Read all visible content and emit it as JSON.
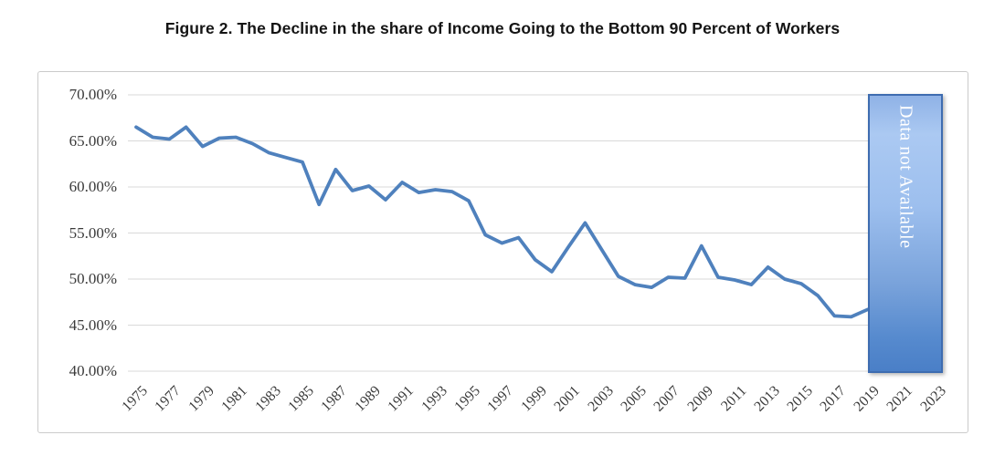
{
  "figure": {
    "title": "Figure 2. The Decline in the share of Income Going to the Bottom 90 Percent of Workers"
  },
  "annotation": {
    "label": "Data not Available"
  },
  "colors": {
    "line": "#4f81bd",
    "gridline": "#d9d9d9",
    "frame_border": "#cbcbcb",
    "tick_text": "#3a3a3a",
    "na_box_border": "#3e6cb0",
    "na_box_fill_light": "#abc9f2",
    "na_box_fill_dark": "#4a7fc7",
    "na_text": "#ffffff"
  },
  "chart_data": {
    "type": "line",
    "title": "Figure 2. The Decline in the share of Income Going to the Bottom 90 Percent of Workers",
    "x": [
      1975,
      1976,
      1977,
      1978,
      1979,
      1980,
      1981,
      1982,
      1983,
      1984,
      1985,
      1986,
      1987,
      1988,
      1989,
      1990,
      1991,
      1992,
      1993,
      1994,
      1995,
      1996,
      1997,
      1998,
      1999,
      2000,
      2001,
      2002,
      2003,
      2004,
      2005,
      2006,
      2007,
      2008,
      2009,
      2010,
      2011,
      2012,
      2013,
      2014,
      2015,
      2016,
      2017,
      2018,
      2019
    ],
    "values": [
      66.5,
      65.4,
      65.2,
      66.5,
      64.4,
      65.3,
      65.4,
      64.7,
      63.7,
      63.2,
      62.7,
      58.1,
      61.9,
      59.6,
      60.1,
      58.6,
      60.5,
      59.4,
      59.7,
      59.5,
      58.5,
      54.8,
      53.9,
      54.5,
      52.1,
      50.8,
      53.5,
      56.1,
      53.2,
      50.3,
      49.4,
      49.1,
      50.2,
      50.1,
      53.6,
      50.2,
      49.9,
      49.4,
      51.3,
      50.0,
      49.5,
      48.2,
      46.0,
      45.9,
      46.7
    ],
    "x_axis": {
      "tick_labels": [
        "1975",
        "1977",
        "1979",
        "1981",
        "1983",
        "1985",
        "1987",
        "1989",
        "1991",
        "1993",
        "1995",
        "1997",
        "1999",
        "2001",
        "2003",
        "2005",
        "2007",
        "2009",
        "2011",
        "2013",
        "2015",
        "2017",
        "2019",
        "2021",
        "2023"
      ],
      "range_shown": [
        1975,
        2023
      ]
    },
    "y_axis": {
      "tick_labels": [
        "70.00%",
        "65.00%",
        "60.00%",
        "55.00%",
        "50.00%",
        "45.00%",
        "40.00%"
      ],
      "ylim": [
        40,
        70
      ],
      "tick_step": 5,
      "unit": "percent"
    },
    "grid": "horizontal",
    "legend": "none",
    "annotation": {
      "label": "Data not Available",
      "covers_x_from": 2019,
      "covers_x_to": 2023
    }
  }
}
